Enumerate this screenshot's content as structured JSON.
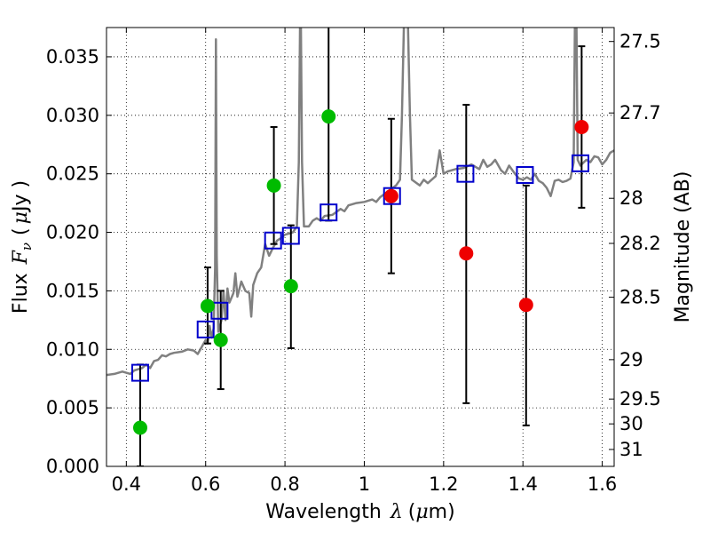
{
  "chart_data": {
    "type": "scatter",
    "xlabel_parts": {
      "text": "Wavelength",
      "symbol": "λ",
      "unit_open": "(",
      "unit_mu": "μ",
      "unit_rest": "m)"
    },
    "ylabel_parts": {
      "text": "Flux",
      "symbol": "F",
      "subscript": "ν",
      "unit_open": "(",
      "unit_mu": "μ",
      "unit_rest": "Jy )"
    },
    "ylabel_right": "Magnitude (AB)",
    "xlim": [
      0.35,
      1.63
    ],
    "ylim": [
      0.0,
      0.0375
    ],
    "xticks": [
      {
        "v": 0.4,
        "label": "0.4"
      },
      {
        "v": 0.6,
        "label": "0.6"
      },
      {
        "v": 0.8,
        "label": "0.8"
      },
      {
        "v": 1.0,
        "label": "1"
      },
      {
        "v": 1.2,
        "label": "1.2"
      },
      {
        "v": 1.4,
        "label": "1.4"
      },
      {
        "v": 1.6,
        "label": "1.6"
      }
    ],
    "yticks": [
      {
        "v": 0.0,
        "label": "0.000"
      },
      {
        "v": 0.005,
        "label": "0.005"
      },
      {
        "v": 0.01,
        "label": "0.010"
      },
      {
        "v": 0.015,
        "label": "0.015"
      },
      {
        "v": 0.02,
        "label": "0.020"
      },
      {
        "v": 0.025,
        "label": "0.025"
      },
      {
        "v": 0.03,
        "label": "0.030"
      },
      {
        "v": 0.035,
        "label": "0.035"
      }
    ],
    "right_ticks": [
      {
        "mag": 27.5,
        "label": "27.5"
      },
      {
        "mag": 27.7,
        "label": "27.7"
      },
      {
        "mag": 28.0,
        "label": "28"
      },
      {
        "mag": 28.2,
        "label": "28.2"
      },
      {
        "mag": 28.5,
        "label": "28.5"
      },
      {
        "mag": 29.0,
        "label": "29"
      },
      {
        "mag": 29.5,
        "label": "29.5"
      },
      {
        "mag": 30.0,
        "label": "30"
      },
      {
        "mag": 31.0,
        "label": "31"
      }
    ],
    "grid": true,
    "colors": {
      "spectrum": "#808080",
      "model": "#0000cc",
      "green": "#00bb00",
      "red": "#ee0000",
      "errorbar": "#000000"
    },
    "model_points": [
      {
        "x": 0.435,
        "y": 0.008
      },
      {
        "x": 0.6,
        "y": 0.0117
      },
      {
        "x": 0.635,
        "y": 0.0133
      },
      {
        "x": 0.77,
        "y": 0.0193
      },
      {
        "x": 0.815,
        "y": 0.0197
      },
      {
        "x": 0.91,
        "y": 0.0217
      },
      {
        "x": 1.07,
        "y": 0.0231
      },
      {
        "x": 1.255,
        "y": 0.025
      },
      {
        "x": 1.405,
        "y": 0.0249
      },
      {
        "x": 1.545,
        "y": 0.0259
      }
    ],
    "observed_green": [
      {
        "x": 0.435,
        "y": 0.0033,
        "ylo": 0.0,
        "yhi": 0.0087
      },
      {
        "x": 0.605,
        "y": 0.0137,
        "ylo": 0.0105,
        "yhi": 0.017
      },
      {
        "x": 0.638,
        "y": 0.0108,
        "ylo": 0.0066,
        "yhi": 0.015
      },
      {
        "x": 0.772,
        "y": 0.024,
        "ylo": 0.019,
        "yhi": 0.029
      },
      {
        "x": 0.815,
        "y": 0.0154,
        "ylo": 0.0101,
        "yhi": 0.0206
      },
      {
        "x": 0.91,
        "y": 0.0299,
        "ylo": 0.021,
        "yhi": 0.038
      }
    ],
    "observed_red": [
      {
        "x": 1.068,
        "y": 0.0231,
        "ylo": 0.0165,
        "yhi": 0.0297
      },
      {
        "x": 1.257,
        "y": 0.0182,
        "ylo": 0.0054,
        "yhi": 0.0309
      },
      {
        "x": 1.408,
        "y": 0.0138,
        "ylo": 0.0035,
        "yhi": 0.024
      },
      {
        "x": 1.548,
        "y": 0.029,
        "ylo": 0.0221,
        "yhi": 0.0359
      }
    ],
    "spectrum": [
      [
        0.35,
        0.0078
      ],
      [
        0.37,
        0.0079
      ],
      [
        0.39,
        0.0081
      ],
      [
        0.41,
        0.0079
      ],
      [
        0.42,
        0.0082
      ],
      [
        0.44,
        0.0084
      ],
      [
        0.45,
        0.0087
      ],
      [
        0.46,
        0.0084
      ],
      [
        0.47,
        0.009
      ],
      [
        0.48,
        0.0091
      ],
      [
        0.49,
        0.0095
      ],
      [
        0.5,
        0.0094
      ],
      [
        0.51,
        0.0096
      ],
      [
        0.52,
        0.0097
      ],
      [
        0.54,
        0.0098
      ],
      [
        0.555,
        0.01
      ],
      [
        0.57,
        0.0099
      ],
      [
        0.58,
        0.0096
      ],
      [
        0.59,
        0.0102
      ],
      [
        0.6,
        0.0108
      ],
      [
        0.605,
        0.0105
      ],
      [
        0.61,
        0.012
      ],
      [
        0.615,
        0.011
      ],
      [
        0.62,
        0.0118
      ],
      [
        0.624,
        0.017
      ],
      [
        0.626,
        0.0365
      ],
      [
        0.628,
        0.018
      ],
      [
        0.632,
        0.0115
      ],
      [
        0.64,
        0.0125
      ],
      [
        0.645,
        0.015
      ],
      [
        0.65,
        0.0125
      ],
      [
        0.655,
        0.0152
      ],
      [
        0.66,
        0.014
      ],
      [
        0.67,
        0.0148
      ],
      [
        0.675,
        0.0165
      ],
      [
        0.68,
        0.0145
      ],
      [
        0.69,
        0.0158
      ],
      [
        0.7,
        0.015
      ],
      [
        0.71,
        0.0148
      ],
      [
        0.715,
        0.0128
      ],
      [
        0.72,
        0.0155
      ],
      [
        0.73,
        0.0165
      ],
      [
        0.74,
        0.017
      ],
      [
        0.75,
        0.019
      ],
      [
        0.76,
        0.018
      ],
      [
        0.77,
        0.0187
      ],
      [
        0.78,
        0.0193
      ],
      [
        0.79,
        0.0195
      ],
      [
        0.8,
        0.0198
      ],
      [
        0.81,
        0.0199
      ],
      [
        0.82,
        0.02
      ],
      [
        0.83,
        0.0205
      ],
      [
        0.835,
        0.026
      ],
      [
        0.838,
        0.038
      ],
      [
        0.84,
        0.038
      ],
      [
        0.843,
        0.026
      ],
      [
        0.848,
        0.0205
      ],
      [
        0.86,
        0.0205
      ],
      [
        0.87,
        0.021
      ],
      [
        0.88,
        0.0212
      ],
      [
        0.89,
        0.021
      ],
      [
        0.9,
        0.0214
      ],
      [
        0.92,
        0.0215
      ],
      [
        0.94,
        0.022
      ],
      [
        0.95,
        0.0218
      ],
      [
        0.96,
        0.0223
      ],
      [
        0.98,
        0.0225
      ],
      [
        1.0,
        0.0226
      ],
      [
        1.02,
        0.0228
      ],
      [
        1.03,
        0.0226
      ],
      [
        1.04,
        0.023
      ],
      [
        1.06,
        0.0235
      ],
      [
        1.08,
        0.024
      ],
      [
        1.09,
        0.0245
      ],
      [
        1.095,
        0.03
      ],
      [
        1.1,
        0.038
      ],
      [
        1.11,
        0.038
      ],
      [
        1.115,
        0.03
      ],
      [
        1.12,
        0.0245
      ],
      [
        1.14,
        0.024
      ],
      [
        1.15,
        0.0245
      ],
      [
        1.16,
        0.0242
      ],
      [
        1.18,
        0.0248
      ],
      [
        1.19,
        0.027
      ],
      [
        1.2,
        0.025
      ],
      [
        1.21,
        0.0252
      ],
      [
        1.23,
        0.0254
      ],
      [
        1.25,
        0.0255
      ],
      [
        1.27,
        0.0258
      ],
      [
        1.29,
        0.0254
      ],
      [
        1.3,
        0.0262
      ],
      [
        1.31,
        0.0256
      ],
      [
        1.32,
        0.0258
      ],
      [
        1.33,
        0.0262
      ],
      [
        1.345,
        0.0253
      ],
      [
        1.355,
        0.025
      ],
      [
        1.365,
        0.0257
      ],
      [
        1.38,
        0.025
      ],
      [
        1.39,
        0.0246
      ],
      [
        1.4,
        0.0245
      ],
      [
        1.41,
        0.0247
      ],
      [
        1.42,
        0.0245
      ],
      [
        1.43,
        0.025
      ],
      [
        1.44,
        0.0244
      ],
      [
        1.45,
        0.0242
      ],
      [
        1.46,
        0.0238
      ],
      [
        1.47,
        0.0231
      ],
      [
        1.48,
        0.0244
      ],
      [
        1.49,
        0.0245
      ],
      [
        1.5,
        0.0243
      ],
      [
        1.51,
        0.0244
      ],
      [
        1.52,
        0.0246
      ],
      [
        1.528,
        0.026
      ],
      [
        1.531,
        0.038
      ],
      [
        1.535,
        0.038
      ],
      [
        1.538,
        0.0262
      ],
      [
        1.545,
        0.0257
      ],
      [
        1.56,
        0.0262
      ],
      [
        1.57,
        0.026
      ],
      [
        1.58,
        0.0265
      ],
      [
        1.59,
        0.0264
      ],
      [
        1.6,
        0.0258
      ],
      [
        1.61,
        0.0262
      ],
      [
        1.62,
        0.0268
      ],
      [
        1.63,
        0.027
      ]
    ]
  }
}
